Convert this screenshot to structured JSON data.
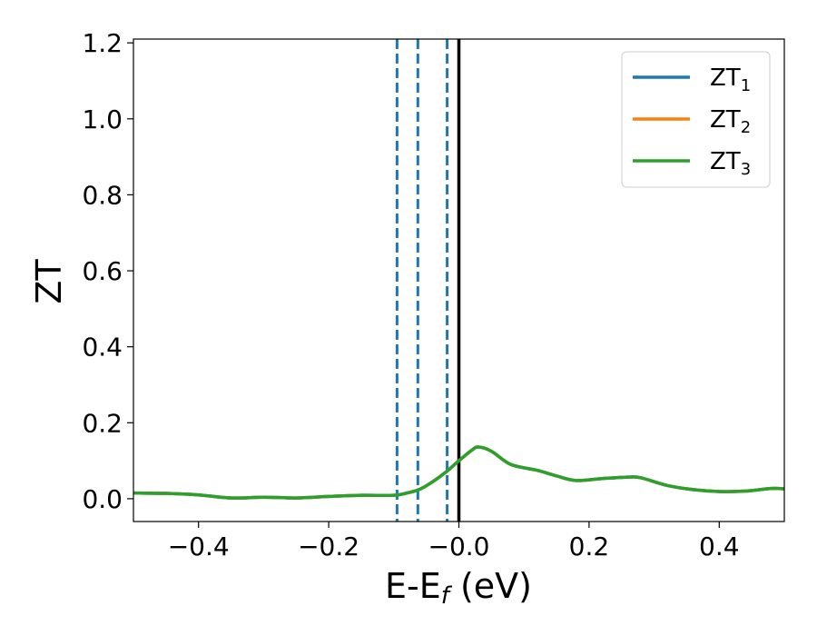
{
  "chart_data": {
    "type": "line",
    "xlabel": "E-E",
    "xlabel_sub": "f",
    "xlabel_unit": " (eV)",
    "ylabel": "ZT",
    "xlim": [
      -0.5,
      0.5
    ],
    "ylim": [
      -0.06,
      1.21
    ],
    "xticks": [
      -0.4,
      -0.2,
      0.0,
      0.2,
      0.4
    ],
    "xtick_labels": [
      "−0.4",
      "−0.2",
      "−0.0",
      "0.2",
      "0.4"
    ],
    "yticks": [
      0.0,
      0.2,
      0.4,
      0.6,
      0.8,
      1.0,
      1.2
    ],
    "ytick_labels": [
      "0.0",
      "0.2",
      "0.4",
      "0.6",
      "0.8",
      "1.0",
      "1.2"
    ],
    "grid": false,
    "legend_position": "top-right",
    "series": [
      {
        "name": "ZT",
        "name_sub": "1",
        "color": "#1f77b4",
        "x": [
          -0.5,
          -0.45,
          -0.4,
          -0.35,
          -0.3,
          -0.25,
          -0.2,
          -0.15,
          -0.1,
          -0.08,
          -0.06,
          -0.04,
          -0.02,
          0.0,
          0.02,
          0.03,
          0.05,
          0.08,
          0.12,
          0.15,
          0.18,
          0.22,
          0.26,
          0.28,
          0.32,
          0.36,
          0.4,
          0.44,
          0.48,
          0.5
        ],
        "y": [
          0.015,
          0.014,
          0.01,
          0.002,
          0.004,
          0.002,
          0.006,
          0.009,
          0.009,
          0.015,
          0.025,
          0.045,
          0.07,
          0.1,
          0.128,
          0.136,
          0.125,
          0.09,
          0.075,
          0.06,
          0.048,
          0.053,
          0.057,
          0.055,
          0.035,
          0.024,
          0.019,
          0.02,
          0.027,
          0.026
        ]
      },
      {
        "name": "ZT",
        "name_sub": "2",
        "color": "#ff7f0e",
        "x": [
          -0.5,
          -0.45,
          -0.4,
          -0.35,
          -0.3,
          -0.25,
          -0.2,
          -0.15,
          -0.1,
          -0.08,
          -0.06,
          -0.04,
          -0.02,
          0.0,
          0.02,
          0.03,
          0.05,
          0.08,
          0.12,
          0.15,
          0.18,
          0.22,
          0.26,
          0.28,
          0.32,
          0.36,
          0.4,
          0.44,
          0.48,
          0.5
        ],
        "y": [
          0.015,
          0.014,
          0.01,
          0.002,
          0.004,
          0.002,
          0.006,
          0.009,
          0.009,
          0.015,
          0.025,
          0.045,
          0.07,
          0.1,
          0.128,
          0.136,
          0.125,
          0.09,
          0.075,
          0.06,
          0.048,
          0.053,
          0.057,
          0.055,
          0.035,
          0.024,
          0.019,
          0.02,
          0.027,
          0.026
        ]
      },
      {
        "name": "ZT",
        "name_sub": "3",
        "color": "#2ca02c",
        "x": [
          -0.5,
          -0.45,
          -0.4,
          -0.35,
          -0.3,
          -0.25,
          -0.2,
          -0.15,
          -0.1,
          -0.08,
          -0.06,
          -0.04,
          -0.02,
          0.0,
          0.02,
          0.03,
          0.05,
          0.08,
          0.12,
          0.15,
          0.18,
          0.22,
          0.26,
          0.28,
          0.32,
          0.36,
          0.4,
          0.44,
          0.48,
          0.5
        ],
        "y": [
          0.015,
          0.014,
          0.01,
          0.002,
          0.004,
          0.002,
          0.006,
          0.009,
          0.009,
          0.015,
          0.025,
          0.045,
          0.07,
          0.1,
          0.128,
          0.136,
          0.125,
          0.09,
          0.075,
          0.06,
          0.048,
          0.053,
          0.057,
          0.055,
          0.035,
          0.024,
          0.019,
          0.02,
          0.027,
          0.026
        ]
      }
    ],
    "vlines": [
      {
        "x": -0.095,
        "style": "dashed",
        "color": "#1f77b4"
      },
      {
        "x": -0.063,
        "style": "dashed",
        "color": "#1f77b4"
      },
      {
        "x": -0.018,
        "style": "dashed",
        "color": "#1f77b4"
      },
      {
        "x": 0.0,
        "style": "solid",
        "color": "#000000"
      }
    ]
  }
}
